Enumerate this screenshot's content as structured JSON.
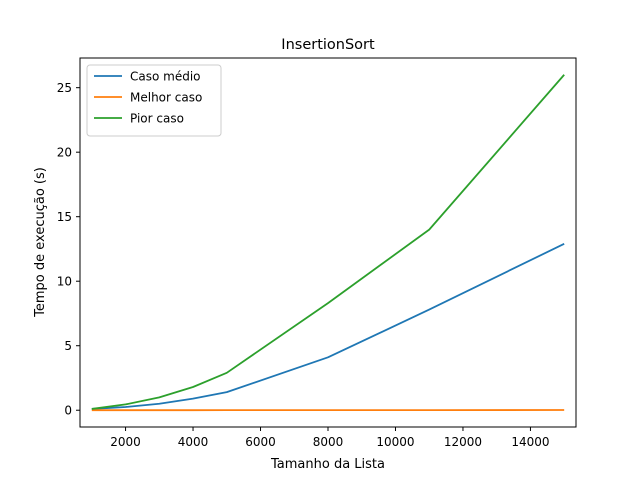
{
  "chart_data": {
    "type": "line",
    "title": "InsertionSort",
    "xlabel": "Tamanho da Lista",
    "ylabel": "Tempo de execução (s)",
    "xlim": [
      650,
      15350
    ],
    "ylim": [
      -1.3,
      27.3
    ],
    "xticks": [
      2000,
      4000,
      6000,
      8000,
      10000,
      12000,
      14000
    ],
    "yticks": [
      0,
      5,
      10,
      15,
      20,
      25
    ],
    "grid": false,
    "legend_position": "top-left",
    "series": [
      {
        "name": "Caso médio",
        "color": "#1f77b4",
        "x": [
          1000,
          2000,
          3000,
          4000,
          5000,
          8000,
          11000,
          15000
        ],
        "y": [
          0.1,
          0.25,
          0.5,
          0.9,
          1.4,
          4.1,
          7.8,
          12.9
        ]
      },
      {
        "name": "Melhor caso",
        "color": "#ff7f0e",
        "x": [
          1000,
          2000,
          3000,
          4000,
          5000,
          8000,
          11000,
          15000
        ],
        "y": [
          0.001,
          0.002,
          0.003,
          0.004,
          0.005,
          0.008,
          0.011,
          0.015
        ]
      },
      {
        "name": "Pior caso",
        "color": "#2ca02c",
        "x": [
          1000,
          2000,
          3000,
          4000,
          5000,
          8000,
          11000,
          15000
        ],
        "y": [
          0.1,
          0.45,
          1.0,
          1.8,
          2.9,
          8.3,
          14.0,
          26.0
        ]
      }
    ]
  }
}
